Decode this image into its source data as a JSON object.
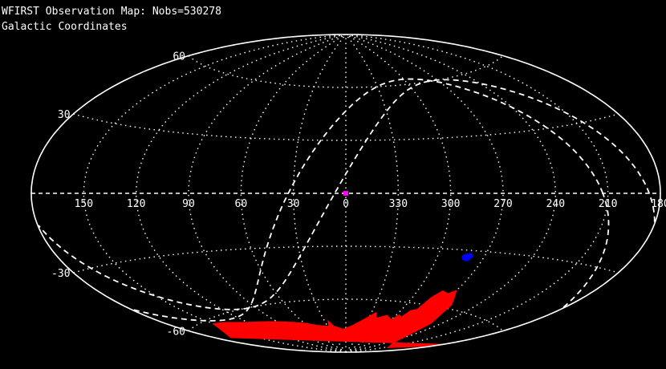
{
  "title": "WFIRST Observation Map: Nobs=530278",
  "subtitle": "Galactic Coordinates",
  "chart_data": {
    "type": "scatter",
    "projection": "aitoff",
    "coordinate_system": "Galactic Coordinates",
    "nobs": 530278,
    "title": "WFIRST Observation Map: Nobs=530278",
    "subtitle": "Galactic Coordinates",
    "xlabel": "",
    "ylabel": "",
    "longitude_direction": "increasing to the left",
    "longitude_range": [
      -180,
      180
    ],
    "latitude_range": [
      -90,
      90
    ],
    "grid": true,
    "grid_style": "dotted",
    "lon_ticks": [
      {
        "value": 150,
        "label": "150"
      },
      {
        "value": 120,
        "label": "120"
      },
      {
        "value": 90,
        "label": "90"
      },
      {
        "value": 60,
        "label": "60"
      },
      {
        "value": 30,
        "label": "30"
      },
      {
        "value": 0,
        "label": "0"
      },
      {
        "value": -30,
        "label": "330"
      },
      {
        "value": -60,
        "label": "300"
      },
      {
        "value": -90,
        "label": "270"
      },
      {
        "value": -120,
        "label": "240"
      },
      {
        "value": -150,
        "label": "210"
      },
      {
        "value": 180,
        "label": "180"
      }
    ],
    "lat_ticks": [
      {
        "value": 60,
        "label": "60"
      },
      {
        "value": 30,
        "label": "30"
      },
      {
        "value": -30,
        "label": "-30"
      },
      {
        "value": -60,
        "label": "-60"
      }
    ],
    "colors": {
      "background": "#000000",
      "foreground": "#ffffff",
      "coverage": "#ff0000",
      "dense_fields": "#0000ff",
      "center_marker": "#ff00ff"
    },
    "series": [
      {
        "kind": "coverage-region",
        "color": "#ff0000",
        "polygon": [
          [
            150,
            -62
          ],
          [
            170,
            -68
          ],
          [
            180,
            -72
          ],
          [
            -175,
            -76
          ],
          [
            -155,
            -82
          ],
          [
            -130,
            -80
          ],
          [
            -110,
            -68
          ],
          [
            -100,
            -58
          ],
          [
            -94,
            -54
          ],
          [
            -90,
            -51
          ],
          [
            -86,
            -53
          ],
          [
            -80,
            -52
          ],
          [
            -76,
            -56
          ],
          [
            -75,
            -63
          ],
          [
            -70,
            -64
          ],
          [
            -68,
            -68
          ],
          [
            -63,
            -67
          ],
          [
            -60,
            -70
          ],
          [
            -50,
            -68
          ],
          [
            -40,
            -70
          ],
          [
            -35,
            -67
          ],
          [
            -22,
            -72
          ],
          [
            -10,
            -75
          ],
          [
            5,
            -77
          ],
          [
            20,
            -75
          ],
          [
            25,
            -72
          ],
          [
            28,
            -75
          ],
          [
            45,
            -74
          ],
          [
            60,
            -72
          ],
          [
            80,
            -70
          ],
          [
            100,
            -68
          ],
          [
            120,
            -66
          ],
          [
            140,
            -63
          ]
        ]
      },
      {
        "kind": "dense-field",
        "name": "",
        "color": "#0000ff",
        "points": [
          {
            "lon": -80.5,
            "lat": -32.9,
            "r": 3.5
          },
          {
            "lon": -79.0,
            "lat": -33.9,
            "r": 4.5
          }
        ]
      }
    ],
    "markers": [
      {
        "kind": "galactic-center",
        "color": "#ff00ff",
        "lon": 0,
        "lat": 0
      }
    ],
    "curves": [
      {
        "kind": "ecliptic",
        "color": "#ffffff",
        "style": "dashed",
        "pole_lon": 96.38,
        "pole_lat": 29.81
      },
      {
        "kind": "equator",
        "color": "#ffffff",
        "style": "dashed",
        "pole_lon": 122.93,
        "pole_lat": 27.13
      }
    ]
  }
}
